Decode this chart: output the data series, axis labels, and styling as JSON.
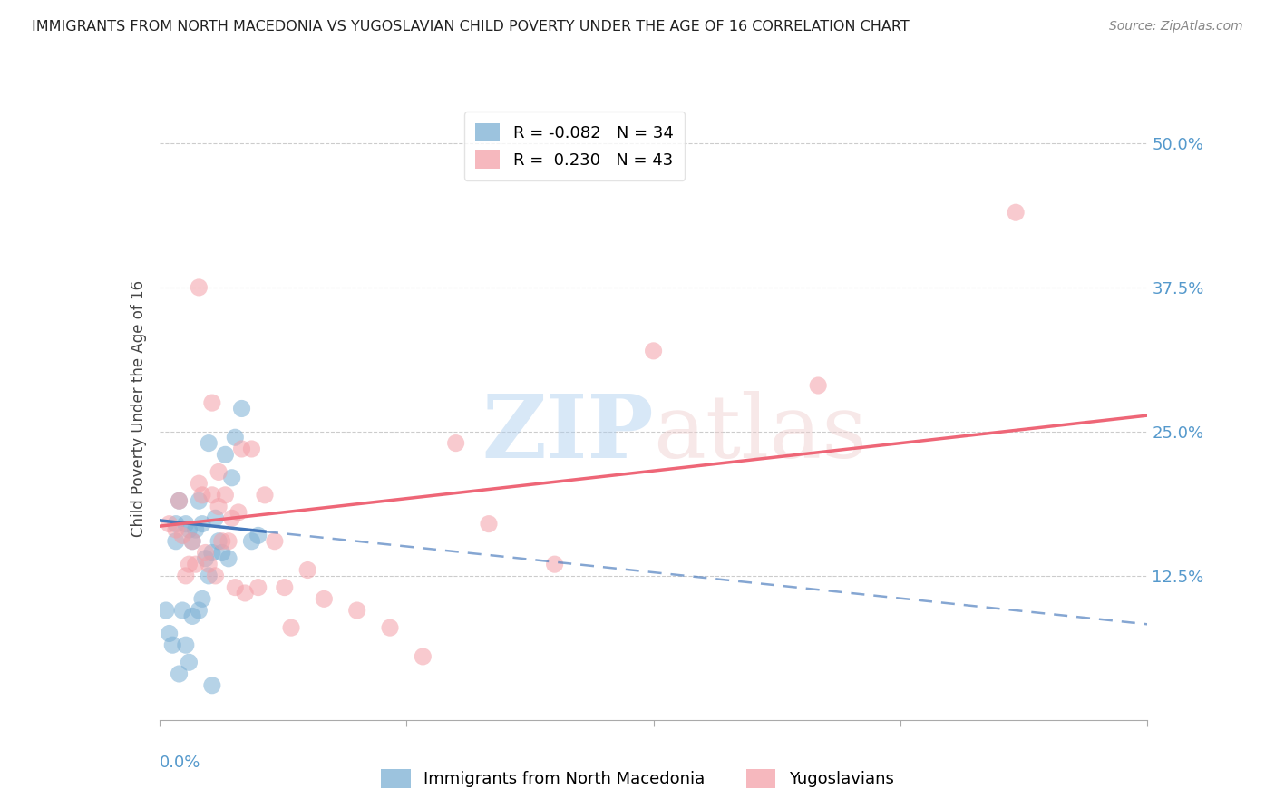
{
  "title": "IMMIGRANTS FROM NORTH MACEDONIA VS YUGOSLAVIAN CHILD POVERTY UNDER THE AGE OF 16 CORRELATION CHART",
  "source": "Source: ZipAtlas.com",
  "ylabel": "Child Poverty Under the Age of 16",
  "right_yticks": [
    "50.0%",
    "37.5%",
    "25.0%",
    "12.5%"
  ],
  "right_ytick_vals": [
    0.5,
    0.375,
    0.25,
    0.125
  ],
  "xlim": [
    0.0,
    0.3
  ],
  "ylim": [
    0.0,
    0.54
  ],
  "blue_color": "#7BAFD4",
  "pink_color": "#F4A0A8",
  "blue_line_color": "#4477BB",
  "pink_line_color": "#EE6677",
  "legend_r_blue": "R = -0.082",
  "legend_n_blue": "N = 34",
  "legend_r_pink": "R =  0.230",
  "legend_n_pink": "N = 43",
  "blue_line_x_solid_start": 0.0,
  "blue_line_x_solid_end": 0.032,
  "blue_line_y_at_0": 0.173,
  "blue_line_slope": -0.3,
  "pink_line_x_start": 0.0,
  "pink_line_x_end": 0.3,
  "pink_line_y_at_0": 0.168,
  "pink_line_slope": 0.32,
  "blue_scatter_x": [
    0.002,
    0.003,
    0.004,
    0.005,
    0.005,
    0.006,
    0.006,
    0.007,
    0.008,
    0.008,
    0.009,
    0.009,
    0.01,
    0.01,
    0.011,
    0.012,
    0.012,
    0.013,
    0.013,
    0.014,
    0.015,
    0.015,
    0.016,
    0.016,
    0.017,
    0.018,
    0.019,
    0.02,
    0.021,
    0.022,
    0.023,
    0.025,
    0.028,
    0.03
  ],
  "blue_scatter_y": [
    0.095,
    0.075,
    0.065,
    0.17,
    0.155,
    0.19,
    0.04,
    0.095,
    0.17,
    0.065,
    0.05,
    0.165,
    0.155,
    0.09,
    0.165,
    0.19,
    0.095,
    0.17,
    0.105,
    0.14,
    0.24,
    0.125,
    0.145,
    0.03,
    0.175,
    0.155,
    0.145,
    0.23,
    0.14,
    0.21,
    0.245,
    0.27,
    0.155,
    0.16
  ],
  "pink_scatter_x": [
    0.003,
    0.005,
    0.006,
    0.007,
    0.008,
    0.009,
    0.01,
    0.011,
    0.012,
    0.013,
    0.014,
    0.015,
    0.016,
    0.017,
    0.018,
    0.018,
    0.019,
    0.02,
    0.021,
    0.022,
    0.023,
    0.024,
    0.025,
    0.026,
    0.028,
    0.03,
    0.032,
    0.035,
    0.038,
    0.04,
    0.045,
    0.05,
    0.06,
    0.07,
    0.08,
    0.09,
    0.1,
    0.12,
    0.15,
    0.2,
    0.26,
    0.012,
    0.016
  ],
  "pink_scatter_y": [
    0.17,
    0.165,
    0.19,
    0.16,
    0.125,
    0.135,
    0.155,
    0.135,
    0.205,
    0.195,
    0.145,
    0.135,
    0.195,
    0.125,
    0.215,
    0.185,
    0.155,
    0.195,
    0.155,
    0.175,
    0.115,
    0.18,
    0.235,
    0.11,
    0.235,
    0.115,
    0.195,
    0.155,
    0.115,
    0.08,
    0.13,
    0.105,
    0.095,
    0.08,
    0.055,
    0.24,
    0.17,
    0.135,
    0.32,
    0.29,
    0.44,
    0.375,
    0.275
  ]
}
